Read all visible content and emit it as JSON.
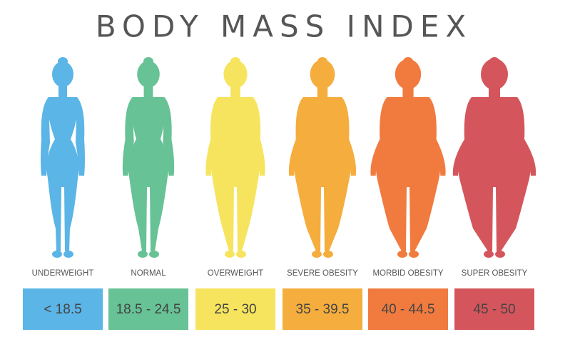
{
  "title": "BODY MASS INDEX",
  "categories": [
    {
      "label": "UNDERWEIGHT",
      "range": "< 18.5",
      "color": "#5bb5e6"
    },
    {
      "label": "NORMAL",
      "range": "18.5 - 24.5",
      "color": "#67c296"
    },
    {
      "label": "OVERWEIGHT",
      "range": "25 - 30",
      "color": "#f7e45e"
    },
    {
      "label": "SEVERE OBESITY",
      "range": "35 - 39.5",
      "color": "#f5ad3e"
    },
    {
      "label": "MORBID OBESITY",
      "range": "40 - 44.5",
      "color": "#f17b3e"
    },
    {
      "label": "SUPER OBESITY",
      "range": "45 - 50",
      "color": "#d4565c"
    }
  ]
}
